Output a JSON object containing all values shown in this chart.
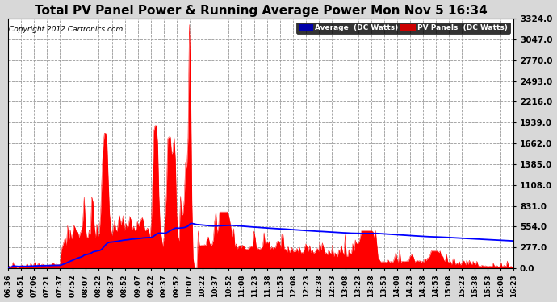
{
  "title": "Total PV Panel Power & Running Average Power Mon Nov 5 16:34",
  "copyright": "Copyright 2012 Cartronics.com",
  "legend_avg": "Average  (DC Watts)",
  "legend_pv": "PV Panels  (DC Watts)",
  "y_ticks": [
    0.0,
    277.0,
    554.0,
    831.0,
    1108.0,
    1385.0,
    1662.0,
    1939.0,
    2216.0,
    2493.0,
    2770.0,
    3047.0,
    3324.0
  ],
  "ylim": [
    0,
    3324.0
  ],
  "bg_color": "#d8d8d8",
  "plot_bg_color": "#ffffff",
  "fill_color": "#ff0000",
  "avg_line_color": "#0000ff",
  "title_fontsize": 11,
  "x_labels": [
    "06:36",
    "06:51",
    "07:06",
    "07:21",
    "07:37",
    "07:52",
    "08:07",
    "08:22",
    "08:37",
    "08:52",
    "09:07",
    "09:22",
    "09:37",
    "09:52",
    "10:07",
    "10:22",
    "10:37",
    "10:52",
    "11:08",
    "11:23",
    "11:38",
    "11:53",
    "12:08",
    "12:23",
    "12:38",
    "12:53",
    "13:08",
    "13:23",
    "13:38",
    "13:53",
    "14:08",
    "14:23",
    "14:38",
    "14:53",
    "15:08",
    "15:23",
    "15:38",
    "15:53",
    "16:08",
    "16:23"
  ]
}
